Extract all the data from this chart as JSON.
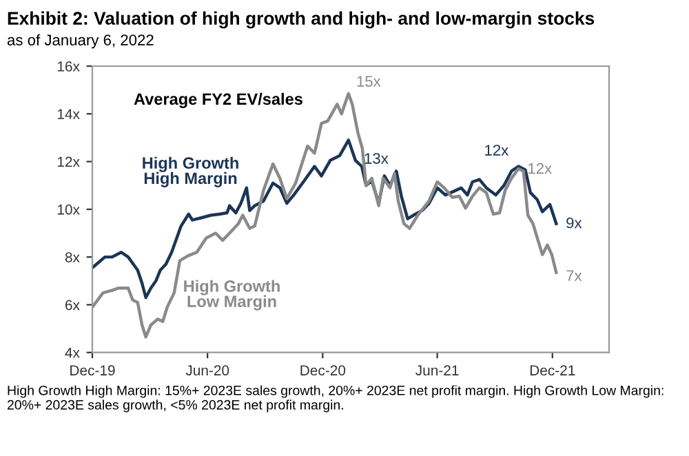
{
  "chart_data": {
    "type": "line",
    "title": "Exhibit 2: Valuation of high growth and high- and low-margin stocks",
    "subtitle": "as of January 6, 2022",
    "xlim": [
      "2019-12-01",
      "2022-03-01"
    ],
    "xticks": [
      {
        "value": "2019-12-01",
        "label": "Dec-19"
      },
      {
        "value": "2020-06-01",
        "label": "Jun-20"
      },
      {
        "value": "2020-12-01",
        "label": "Dec-20"
      },
      {
        "value": "2021-06-01",
        "label": "Jun-21"
      },
      {
        "value": "2021-12-01",
        "label": "Dec-21"
      }
    ],
    "ylim": [
      4,
      16
    ],
    "yticks": [
      {
        "value": 4,
        "label": "4x"
      },
      {
        "value": 6,
        "label": "6x"
      },
      {
        "value": 8,
        "label": "8x"
      },
      {
        "value": 10,
        "label": "10x"
      },
      {
        "value": 12,
        "label": "12x"
      },
      {
        "value": 14,
        "label": "14x"
      },
      {
        "value": 16,
        "label": "16x"
      }
    ],
    "grid": false,
    "legend": false,
    "marker": "none",
    "line_style": "solid",
    "series": [
      {
        "name": "High Growth\nHigh Margin",
        "color": "#1c3556",
        "x": [
          "2019-12-01",
          "2019-12-21",
          "2020-01-01",
          "2020-01-16",
          "2020-01-27",
          "2020-02-11",
          "2020-02-18",
          "2020-02-24",
          "2020-03-03",
          "2020-03-11",
          "2020-03-18",
          "2020-03-27",
          "2020-04-05",
          "2020-04-20",
          "2020-05-02",
          "2020-05-08",
          "2020-05-23",
          "2020-06-06",
          "2020-06-21",
          "2020-07-02",
          "2020-07-06",
          "2020-07-16",
          "2020-07-24",
          "2020-08-02",
          "2020-08-07",
          "2020-08-15",
          "2020-08-29",
          "2020-09-13",
          "2020-09-24",
          "2020-10-05",
          "2020-10-16",
          "2020-10-30",
          "2020-11-18",
          "2020-11-29",
          "2020-12-13",
          "2020-12-28",
          "2021-01-11",
          "2021-01-22",
          "2021-02-01",
          "2021-02-08",
          "2021-02-17",
          "2021-02-28",
          "2021-03-09",
          "2021-03-18",
          "2021-03-28",
          "2021-04-05",
          "2021-04-15",
          "2021-04-24",
          "2021-05-08",
          "2021-05-19",
          "2021-06-01",
          "2021-06-14",
          "2021-06-27",
          "2021-07-09",
          "2021-07-19",
          "2021-07-27",
          "2021-08-07",
          "2021-08-18",
          "2021-09-02",
          "2021-09-15",
          "2021-09-27",
          "2021-10-08",
          "2021-10-19",
          "2021-10-27",
          "2021-11-07",
          "2021-11-15",
          "2021-11-27",
          "2021-12-07"
        ],
        "values": [
          7.55,
          8.0,
          8.0,
          8.2,
          8.0,
          7.45,
          6.9,
          6.3,
          6.7,
          7.0,
          7.45,
          7.7,
          8.2,
          9.3,
          9.8,
          9.55,
          9.65,
          9.75,
          9.8,
          9.85,
          10.15,
          9.85,
          10.25,
          10.9,
          9.95,
          10.15,
          10.35,
          11.1,
          10.9,
          10.25,
          10.6,
          11.1,
          11.8,
          11.4,
          12.05,
          12.25,
          12.9,
          12.05,
          11.8,
          11.0,
          11.2,
          10.25,
          11.4,
          11.0,
          11.6,
          10.55,
          9.6,
          9.75,
          9.95,
          10.25,
          10.9,
          10.6,
          10.75,
          10.9,
          10.6,
          11.15,
          11.25,
          10.9,
          10.6,
          11.0,
          11.6,
          11.8,
          11.65,
          10.7,
          10.4,
          9.9,
          10.2,
          9.4
        ]
      },
      {
        "name": "High Growth\nLow Margin",
        "color": "#8a8a8a",
        "x": [
          "2019-12-01",
          "2019-12-18",
          "2020-01-01",
          "2020-01-12",
          "2020-01-27",
          "2020-02-03",
          "2020-02-11",
          "2020-02-18",
          "2020-02-24",
          "2020-03-03",
          "2020-03-14",
          "2020-03-22",
          "2020-03-29",
          "2020-04-09",
          "2020-04-18",
          "2020-05-01",
          "2020-05-15",
          "2020-05-30",
          "2020-06-14",
          "2020-06-25",
          "2020-07-06",
          "2020-07-20",
          "2020-07-27",
          "2020-08-07",
          "2020-08-15",
          "2020-08-29",
          "2020-09-13",
          "2020-09-24",
          "2020-10-05",
          "2020-10-19",
          "2020-11-07",
          "2020-11-18",
          "2020-11-29",
          "2020-12-09",
          "2020-12-24",
          "2020-12-31",
          "2021-01-11",
          "2021-01-17",
          "2021-01-26",
          "2021-02-02",
          "2021-02-08",
          "2021-02-17",
          "2021-02-28",
          "2021-03-07",
          "2021-03-18",
          "2021-03-25",
          "2021-03-31",
          "2021-04-09",
          "2021-04-18",
          "2021-05-01",
          "2021-05-19",
          "2021-06-01",
          "2021-06-12",
          "2021-06-25",
          "2021-07-06",
          "2021-07-16",
          "2021-07-27",
          "2021-08-07",
          "2021-08-18",
          "2021-08-29",
          "2021-09-08",
          "2021-09-17",
          "2021-09-27",
          "2021-10-08",
          "2021-10-16",
          "2021-10-23",
          "2021-10-31",
          "2021-11-15",
          "2021-11-23",
          "2021-11-30",
          "2021-12-07"
        ],
        "values": [
          5.9,
          6.5,
          6.6,
          6.7,
          6.7,
          6.2,
          6.1,
          5.15,
          4.65,
          5.15,
          5.4,
          5.3,
          5.9,
          6.5,
          7.85,
          8.05,
          8.2,
          8.8,
          9.0,
          8.7,
          9.0,
          9.4,
          9.75,
          9.2,
          9.3,
          10.8,
          11.9,
          11.3,
          10.45,
          11.1,
          12.65,
          12.35,
          13.6,
          13.7,
          14.4,
          14.0,
          14.85,
          14.4,
          13.2,
          12.55,
          11.0,
          11.3,
          10.15,
          11.3,
          10.9,
          11.5,
          10.35,
          9.4,
          9.2,
          9.75,
          10.35,
          11.15,
          10.9,
          10.5,
          10.55,
          10.05,
          10.55,
          10.9,
          10.7,
          9.8,
          9.85,
          10.8,
          11.3,
          11.7,
          11.6,
          9.75,
          9.4,
          8.1,
          8.5,
          8.1,
          7.35
        ]
      }
    ],
    "annotations": [
      "Average FY2 EV/sales",
      {
        "text": "15x",
        "x": "2021-01-11",
        "y": 14.85
      },
      {
        "text": "13x",
        "x": "2021-01-11",
        "y": 12.9
      },
      {
        "text": "12x",
        "x": "2021-10-08",
        "y": 11.8
      },
      {
        "text": "12x",
        "x": "2021-10-16",
        "y": 11.6
      },
      {
        "text": "9x",
        "x": "2021-12-07",
        "y": 9.4
      },
      {
        "text": "7x",
        "x": "2021-12-07",
        "y": 7.35
      },
      "High Growth High Margin: 15%+ 2023E sales growth, 20%+ 2023E net profit margin. High Growth Low Margin: 20%+ 2023E sales growth, <5% 2023E net profit margin."
    ]
  }
}
